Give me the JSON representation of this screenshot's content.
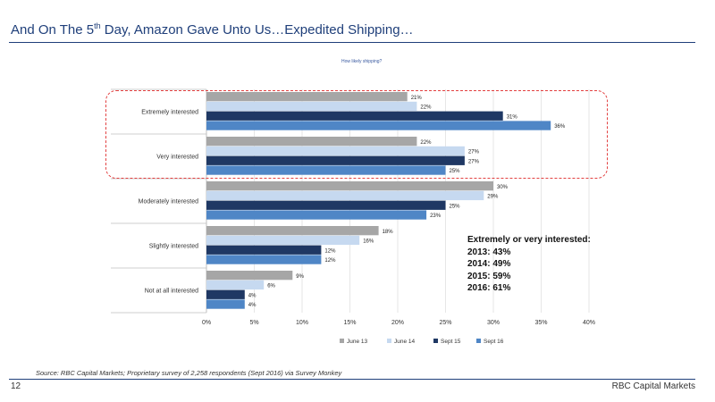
{
  "header": {
    "title_before": "And On The 5",
    "title_sup": "th",
    "title_after": " Day, Amazon Gave Unto Us…Expedited Shipping…"
  },
  "chart_question": "How likely shipping?",
  "callout": {
    "heading": "Extremely or very interested:",
    "lines": [
      "2013: 43%",
      "2014: 49%",
      "2015: 59%",
      "2016: 61%"
    ]
  },
  "footer": {
    "source": "Source: RBC Capital Markets; Proprietary survey of 2,258 respondents (Sept 2016) via Survey Monkey",
    "page_number": "12",
    "brand": "RBC Capital Markets"
  },
  "colors": {
    "june13": "#a6a6a6",
    "june14": "#c6d9f0",
    "sept15": "#1f3864",
    "sept16": "#4f86c6",
    "highlight": "#e24040",
    "title": "#1f3f7a"
  },
  "chart_data": {
    "type": "bar",
    "orientation": "horizontal",
    "title": "How likely shipping?",
    "categories": [
      "Extremely interested",
      "Very interested",
      "Moderately interested",
      "Slightly interested",
      "Not at all interested"
    ],
    "series": [
      {
        "name": "June 13",
        "values": [
          21,
          22,
          30,
          18,
          9
        ],
        "labels": [
          "21%",
          "22%",
          "30%",
          "18%",
          "9%"
        ]
      },
      {
        "name": "June 14",
        "values": [
          22,
          27,
          29,
          16,
          6
        ],
        "labels": [
          "22%",
          "27%",
          "29%",
          "16%",
          "6%"
        ]
      },
      {
        "name": "Sept 15",
        "values": [
          31,
          27,
          25,
          12,
          4
        ],
        "labels": [
          "31%",
          "27%",
          "25%",
          "12%",
          "4%"
        ]
      },
      {
        "name": "Sept 16",
        "values": [
          36,
          25,
          23,
          12,
          4
        ],
        "labels": [
          "36%",
          "25%",
          "23%",
          "12%",
          "4%"
        ]
      }
    ],
    "x_ticks": [
      "0%",
      "5%",
      "10%",
      "15%",
      "20%",
      "25%",
      "30%",
      "35%",
      "40%"
    ],
    "xlim": [
      0,
      40
    ],
    "legend_position": "bottom",
    "highlighted_categories": [
      "Extremely interested",
      "Very interested"
    ]
  }
}
